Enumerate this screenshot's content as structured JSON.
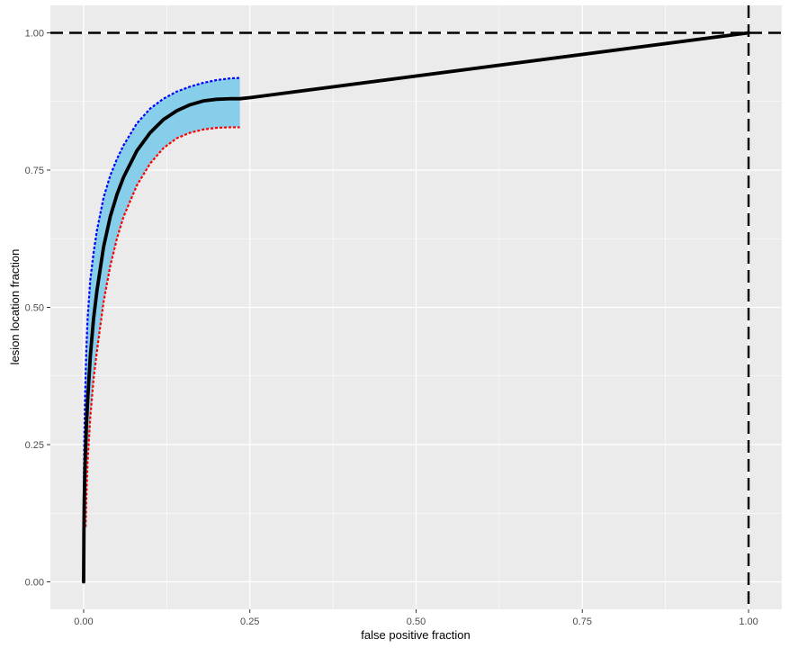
{
  "chart_data": {
    "type": "line",
    "title": "",
    "xlabel": "false positive fraction",
    "ylabel": "lesion location fraction",
    "xlim": [
      -0.05,
      1.05
    ],
    "ylim": [
      -0.05,
      1.05
    ],
    "grid": true,
    "x_ticks": [
      0.0,
      0.25,
      0.5,
      0.75,
      1.0
    ],
    "x_tick_labels": [
      "0.00",
      "0.25",
      "0.50",
      "0.75",
      "1.00"
    ],
    "y_ticks": [
      0.0,
      0.25,
      0.5,
      0.75,
      1.0
    ],
    "y_tick_labels": [
      "0.00",
      "0.25",
      "0.50",
      "0.75",
      "1.00"
    ],
    "colors": {
      "panel": "#ebebeb",
      "grid": "#ffffff",
      "band": "#87ceeb",
      "curve": "#000000",
      "upper": "#0000ff",
      "lower": "#ff0000"
    },
    "reference_lines": [
      {
        "orientation": "horizontal",
        "value": 1.0,
        "style": "dashed"
      },
      {
        "orientation": "vertical",
        "value": 1.0,
        "style": "dashed"
      }
    ],
    "series": [
      {
        "role": "curve",
        "style": "solid",
        "x": [
          0.0,
          0.0005,
          0.001,
          0.002,
          0.004,
          0.006,
          0.01,
          0.015,
          0.02,
          0.03,
          0.04,
          0.05,
          0.06,
          0.08,
          0.1,
          0.12,
          0.14,
          0.16,
          0.18,
          0.2,
          0.22,
          0.235,
          0.25,
          1.0
        ],
        "y": [
          0.0,
          0.1,
          0.15,
          0.21,
          0.28,
          0.33,
          0.41,
          0.48,
          0.53,
          0.61,
          0.665,
          0.705,
          0.737,
          0.785,
          0.818,
          0.842,
          0.858,
          0.869,
          0.876,
          0.879,
          0.88,
          0.88,
          0.882,
          1.0
        ]
      },
      {
        "role": "upper",
        "style": "dotted",
        "x": [
          0.0,
          0.0005,
          0.001,
          0.002,
          0.004,
          0.006,
          0.01,
          0.015,
          0.02,
          0.03,
          0.04,
          0.05,
          0.06,
          0.08,
          0.1,
          0.12,
          0.14,
          0.16,
          0.18,
          0.2,
          0.22,
          0.235
        ],
        "y": [
          0.0,
          0.2,
          0.26,
          0.33,
          0.42,
          0.48,
          0.55,
          0.6,
          0.64,
          0.7,
          0.74,
          0.77,
          0.795,
          0.835,
          0.862,
          0.88,
          0.893,
          0.902,
          0.909,
          0.914,
          0.917,
          0.918
        ]
      },
      {
        "role": "lower",
        "style": "dotted",
        "x": [
          0.003,
          0.004,
          0.006,
          0.01,
          0.015,
          0.02,
          0.03,
          0.04,
          0.05,
          0.06,
          0.08,
          0.1,
          0.12,
          0.14,
          0.16,
          0.18,
          0.2,
          0.22,
          0.235
        ],
        "y": [
          0.1,
          0.15,
          0.22,
          0.3,
          0.37,
          0.42,
          0.51,
          0.575,
          0.625,
          0.665,
          0.722,
          0.762,
          0.79,
          0.808,
          0.818,
          0.824,
          0.827,
          0.828,
          0.828
        ]
      }
    ]
  }
}
